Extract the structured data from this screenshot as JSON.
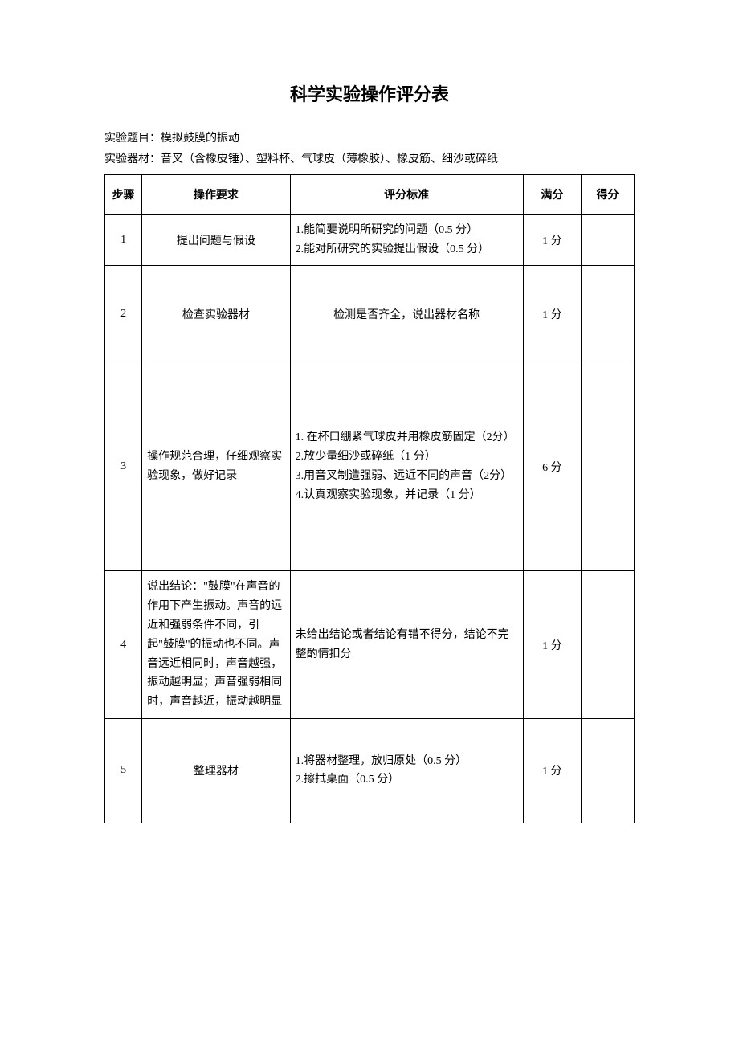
{
  "title": "科学实验操作评分表",
  "meta": {
    "topic_label": "实验题目：",
    "topic": "模拟鼓膜的振动",
    "materials_label": "实验器材：",
    "materials": "音叉（含橡皮锤）、塑料杯、气球皮（薄橡胶）、橡皮筋、细沙或碎纸"
  },
  "headers": {
    "step": "步骤",
    "requirement": "操作要求",
    "standard": "评分标准",
    "full": "满分",
    "score": "得分"
  },
  "rows": [
    {
      "step": "1",
      "requirement": "提出问题与假设",
      "standard": "1.能简要说明所研究的问题（0.5 分）\n2.能对所研究的实验提出假设（0.5 分）",
      "full": "1 分",
      "score": ""
    },
    {
      "step": "2",
      "requirement": "检查实验器材",
      "standard": "检测是否齐全，说出器材名称",
      "full": "1 分",
      "score": ""
    },
    {
      "step": "3",
      "requirement": "操作规范合理，仔细观察实验现象，做好记录",
      "standard": "1. 在杯口绷紧气球皮并用橡皮筋固定（2分）\n2.放少量细沙或碎纸（1 分）\n3.用音叉制造强弱、远近不同的声音（2分）\n4.认真观察实验现象，并记录（1 分）",
      "full": "6 分",
      "score": ""
    },
    {
      "step": "4",
      "requirement": "说出结论：\"鼓膜\"在声音的作用下产生振动。声音的远近和强弱条件不同，引起\"鼓膜\"的振动也不同。声音远近相同时，声音越强，振动越明显；声音强弱相同时，声音越近，振动越明显",
      "standard": "未给出结论或者结论有错不得分，结论不完整酌情扣分",
      "full": "1 分",
      "score": ""
    },
    {
      "step": "5",
      "requirement": "整理器材",
      "standard": "1.将器材整理，放归原处（0.5 分）\n2.擦拭桌面（0.5 分）",
      "full": "1 分",
      "score": ""
    }
  ]
}
